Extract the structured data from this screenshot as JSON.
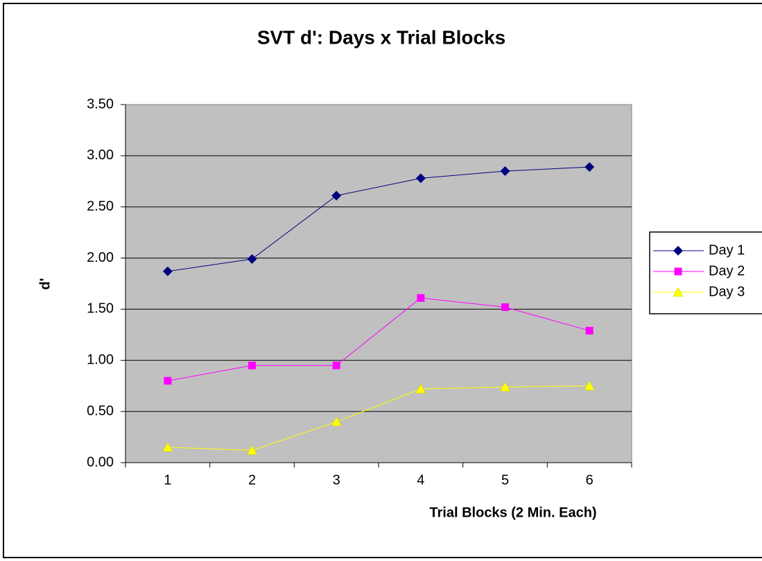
{
  "chart_data": {
    "type": "line",
    "title": "SVT d':  Days x Trial Blocks",
    "x_label": "Trial Blocks (2 Min. Each)",
    "y_label": "d'",
    "categories": [
      "1",
      "2",
      "3",
      "4",
      "5",
      "6"
    ],
    "series": [
      {
        "name": "Day 1",
        "color": "#000080",
        "marker": "diamond",
        "values": [
          1.87,
          1.99,
          2.61,
          2.78,
          2.85,
          2.89
        ]
      },
      {
        "name": "Day 2",
        "color": "#ff00ff",
        "marker": "square",
        "values": [
          0.8,
          0.95,
          0.95,
          1.61,
          1.52,
          1.29
        ]
      },
      {
        "name": "Day 3",
        "color": "#ffff00",
        "marker": "triangle",
        "values": [
          0.15,
          0.12,
          0.4,
          0.72,
          0.74,
          0.75
        ]
      }
    ],
    "ylim": [
      0,
      3.5
    ],
    "yticks": [
      {
        "value": 0,
        "label": "0.00"
      },
      {
        "value": 0.5,
        "label": "0.50"
      },
      {
        "value": 1,
        "label": "1.00"
      },
      {
        "value": 1.5,
        "label": "1.50"
      },
      {
        "value": 2,
        "label": "2.00"
      },
      {
        "value": 2.5,
        "label": "2.50"
      },
      {
        "value": 3,
        "label": "3.00"
      },
      {
        "value": 3.5,
        "label": "3.50"
      }
    ],
    "grid": true,
    "legend": "right"
  }
}
